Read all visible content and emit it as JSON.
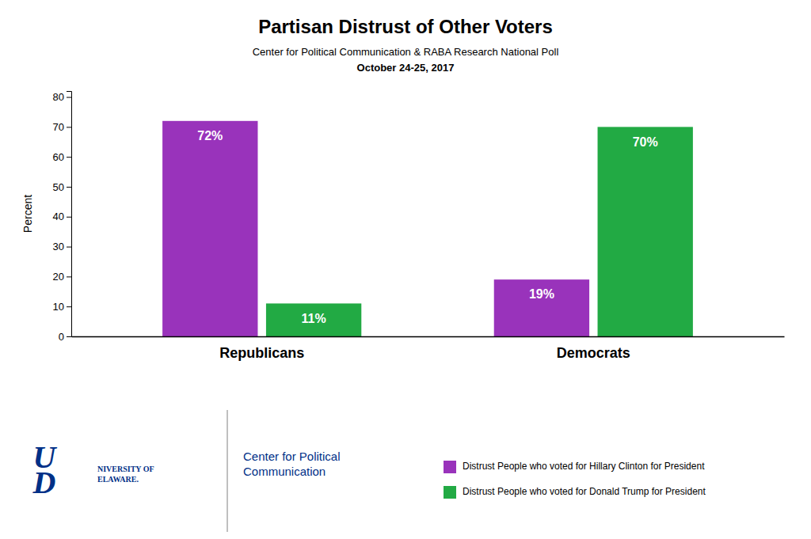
{
  "chart_data": {
    "type": "bar",
    "title": "Partisan Distrust of Other Voters",
    "subtitle": [
      "Center for Political Communication & RABA Research National Poll",
      "October 24-25, 2017"
    ],
    "ylabel": "Percent",
    "categories": [
      "Republicans",
      "Democrats"
    ],
    "series": [
      {
        "name": "Distrust People who voted for Hillary Clinton for President",
        "color": "#9933bb",
        "values": [
          72,
          19
        ],
        "value_labels": [
          "72%",
          "19%"
        ]
      },
      {
        "name": "Distrust People who voted for Donald Trump for President",
        "color": "#22aa44",
        "values": [
          11,
          70
        ],
        "value_labels": [
          "11%",
          "70%"
        ]
      }
    ],
    "ylim": [
      0,
      82
    ],
    "yticks": [
      0,
      10,
      20,
      30,
      40,
      50,
      60,
      70,
      80
    ],
    "grid": false,
    "legend": "bottom-right",
    "data_labels": true,
    "annotations": [
      "U",
      "NIVERSITY OF\nELAWARE.",
      "D",
      "Center for Political\nCommunication"
    ]
  }
}
